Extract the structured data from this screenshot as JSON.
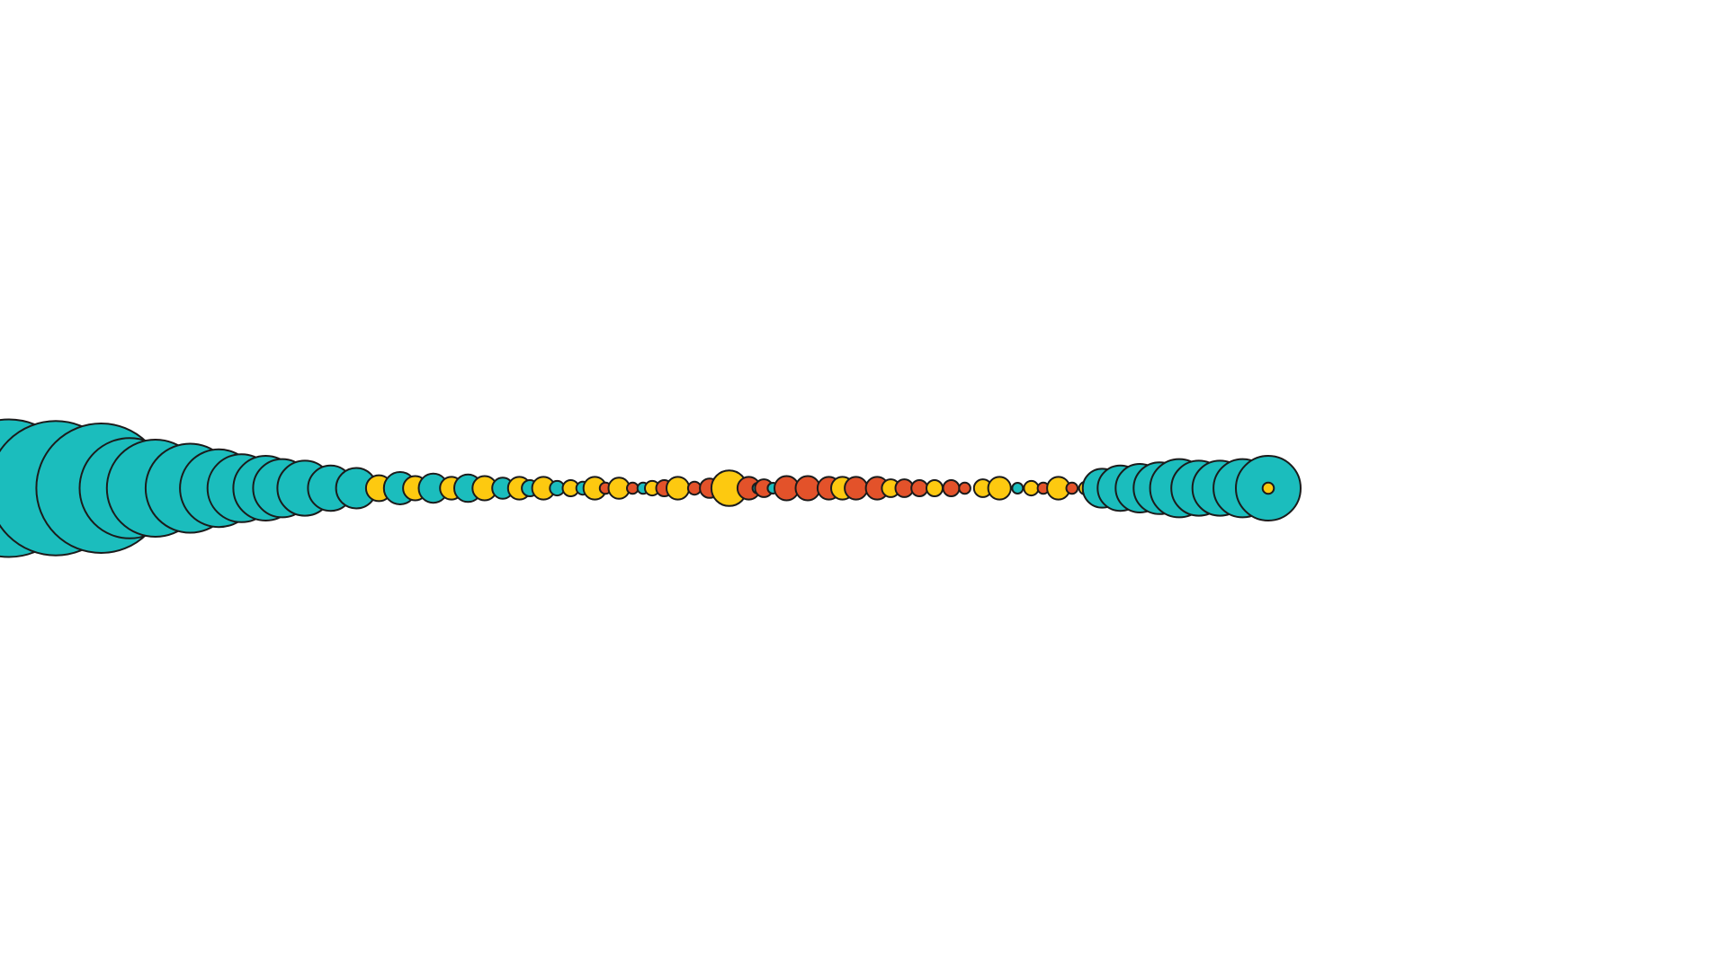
{
  "palette": {
    "background": "#ffffff",
    "teal": "#1bbdbd",
    "yellow": "#fdc910",
    "orange": "#e3522a",
    "outline": "#1b1b1b"
  },
  "scene": {
    "description_free": true,
    "bead_chain": [
      {
        "color": "teal",
        "level": 0.85
      },
      {
        "color": "teal",
        "level": 0.83
      },
      {
        "color": "teal",
        "level": 0.8
      },
      {
        "color": "teal",
        "level": 0.62
      },
      {
        "color": "teal",
        "level": 0.6
      },
      {
        "color": "teal",
        "level": 0.55
      },
      {
        "color": "teal",
        "level": 0.48
      },
      {
        "color": "teal",
        "level": 0.42
      },
      {
        "color": "teal",
        "level": 0.4
      },
      {
        "color": "teal",
        "level": 0.36
      },
      {
        "color": "teal",
        "level": 0.34
      },
      {
        "color": "teal",
        "level": 0.28
      },
      {
        "color": "teal",
        "level": 0.25
      },
      {
        "color": "yellow",
        "level": 0.16
      },
      {
        "color": "teal",
        "level": 0.2
      },
      {
        "color": "yellow",
        "level": 0.15
      },
      {
        "color": "teal",
        "level": 0.18
      },
      {
        "color": "yellow",
        "level": 0.14
      },
      {
        "color": "teal",
        "level": 0.17
      },
      {
        "color": "yellow",
        "level": 0.15
      },
      {
        "color": "teal",
        "level": 0.13
      },
      {
        "color": "yellow",
        "level": 0.14
      },
      {
        "color": "teal",
        "level": 0.1
      },
      {
        "color": "yellow",
        "level": 0.14
      },
      {
        "color": "teal",
        "level": 0.09
      },
      {
        "color": "yellow",
        "level": 0.1
      },
      {
        "color": "teal",
        "level": 0.08
      },
      {
        "color": "yellow",
        "level": 0.14
      },
      {
        "color": "orange",
        "level": 0.07
      },
      {
        "color": "yellow",
        "level": 0.13
      },
      {
        "color": "orange",
        "level": 0.07
      },
      {
        "color": "teal",
        "level": 0.07
      },
      {
        "color": "yellow",
        "level": 0.09
      },
      {
        "color": "orange",
        "level": 0.1
      },
      {
        "color": "yellow",
        "level": 0.14
      },
      {
        "color": "orange",
        "level": 0.08
      },
      {
        "color": "orange",
        "level": 0.12
      },
      {
        "color": "yellow",
        "level": 0.22
      },
      {
        "color": "orange",
        "level": 0.14
      },
      {
        "color": "teal",
        "level": 0.04
      },
      {
        "color": "orange",
        "level": 0.11
      },
      {
        "color": "teal",
        "level": 0.03
      },
      {
        "color": "orange",
        "level": 0.15
      },
      {
        "color": "orange",
        "level": 0.15
      },
      {
        "color": "orange",
        "level": 0.14
      },
      {
        "color": "yellow",
        "level": 0.14
      },
      {
        "color": "orange",
        "level": 0.14
      },
      {
        "color": "orange",
        "level": 0.14
      },
      {
        "color": "yellow",
        "level": 0.11
      },
      {
        "color": "orange",
        "level": 0.11
      },
      {
        "color": "orange",
        "level": 0.1
      },
      {
        "color": "yellow",
        "level": 0.1
      },
      {
        "color": "orange",
        "level": 0.1
      },
      {
        "color": "orange",
        "level": 0.07
      },
      {
        "color": "yellow",
        "level": 0.11
      },
      {
        "color": "yellow",
        "level": 0.14
      },
      {
        "color": "teal",
        "level": 0.03
      },
      {
        "color": "yellow",
        "level": 0.09
      },
      {
        "color": "orange",
        "level": 0.07
      },
      {
        "color": "yellow",
        "level": 0.14
      },
      {
        "color": "orange",
        "level": 0.07
      },
      {
        "color": "yellow",
        "level": 0.08
      },
      {
        "color": "teal",
        "level": 0.24
      },
      {
        "color": "teal",
        "level": 0.28
      },
      {
        "color": "teal",
        "level": 0.3
      },
      {
        "color": "teal",
        "level": 0.32
      },
      {
        "color": "teal",
        "level": 0.36
      },
      {
        "color": "teal",
        "level": 0.34
      },
      {
        "color": "teal",
        "level": 0.34
      },
      {
        "color": "teal",
        "level": 0.36
      },
      {
        "color": "teal",
        "level": 0.4
      },
      {
        "color": "yellow",
        "level": 0.07
      }
    ]
  }
}
